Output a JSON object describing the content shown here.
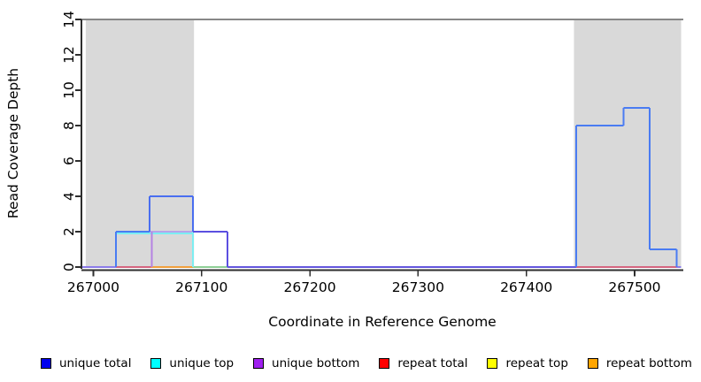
{
  "chart_data": {
    "type": "line",
    "subtype": "step-coverage",
    "title": "",
    "xlabel": "Coordinate in Reference Genome",
    "ylabel": "Read Coverage Depth",
    "xlim": [
      266989,
      267545
    ],
    "ylim": [
      0,
      14
    ],
    "x_ticks": [
      267000,
      267100,
      267200,
      267300,
      267400,
      267500
    ],
    "y_ticks": [
      0,
      2,
      4,
      6,
      8,
      10,
      12,
      14
    ],
    "grid": false,
    "legend_position": "bottom-horizontal",
    "shade_color": "#d9d9d9",
    "top_rule": {
      "y": 14,
      "color": "#878787"
    },
    "shaded_regions": [
      {
        "x0": 266993,
        "x1": 267093
      },
      {
        "x0": 267444,
        "x1": 267543
      }
    ],
    "series": [
      {
        "name": "unique total",
        "color": "#0000EE",
        "steps": [
          [
            266989,
            0
          ],
          [
            267021,
            2
          ],
          [
            267052,
            4
          ],
          [
            267092,
            2
          ],
          [
            267124,
            0
          ],
          [
            267446,
            8
          ],
          [
            267490,
            9
          ],
          [
            267514,
            1
          ],
          [
            267539,
            0
          ],
          [
            267545,
            0
          ]
        ]
      },
      {
        "name": "unique top",
        "color": "#00FFFF",
        "steps": [
          [
            266989,
            0
          ],
          [
            267021,
            2
          ],
          [
            267092,
            0
          ],
          [
            267446,
            8
          ],
          [
            267490,
            9
          ],
          [
            267514,
            1
          ],
          [
            267539,
            0
          ],
          [
            267545,
            0
          ]
        ]
      },
      {
        "name": "unique bottom",
        "color": "#A020F0",
        "steps": [
          [
            266989,
            0
          ],
          [
            267053,
            2
          ],
          [
            267124,
            0
          ],
          [
            267545,
            0
          ]
        ]
      },
      {
        "name": "repeat total",
        "color": "#FF0000",
        "steps": [
          [
            266989,
            0
          ],
          [
            267545,
            0
          ]
        ]
      },
      {
        "name": "repeat top",
        "color": "#FFFF00",
        "steps": [
          [
            266989,
            0
          ],
          [
            267545,
            0
          ]
        ]
      },
      {
        "name": "repeat bottom",
        "color": "#FFA500",
        "steps": [
          [
            266989,
            0
          ],
          [
            267545,
            0
          ]
        ]
      }
    ],
    "legend": [
      {
        "label": "unique total",
        "color": "#0000EE"
      },
      {
        "label": "unique top",
        "color": "#00FFFF"
      },
      {
        "label": "unique bottom",
        "color": "#A020F0"
      },
      {
        "label": "repeat total",
        "color": "#FF0000"
      },
      {
        "label": "repeat top",
        "color": "#FFFF00"
      },
      {
        "label": "repeat bottom",
        "color": "#FFA500"
      }
    ],
    "rendered_segments": [
      {
        "x1": 266989,
        "x2": 267021,
        "y1": 0,
        "y2": 0,
        "color": "#8b7be8",
        "w": 2
      },
      {
        "x1": 267021,
        "x2": 267053,
        "y1": 0,
        "y2": 0,
        "color": "#d4647f",
        "w": 2
      },
      {
        "x1": 267053,
        "x2": 267092,
        "y1": 0,
        "y2": 0,
        "color": "#f09f3c",
        "w": 2
      },
      {
        "x1": 267092,
        "x2": 267124,
        "y1": 0,
        "y2": 0,
        "color": "#8ecf96",
        "w": 2
      },
      {
        "x1": 267124,
        "x2": 267446,
        "y1": 0,
        "y2": 0,
        "color": "#6456dd",
        "w": 2
      },
      {
        "x1": 267446,
        "x2": 267539,
        "y1": 0,
        "y2": 0,
        "color": "#d4647f",
        "w": 2
      },
      {
        "x1": 267539,
        "x2": 267543,
        "y1": 0,
        "y2": 0,
        "color": "#8b7be8",
        "w": 2
      },
      {
        "x1": 267021,
        "x2": 267092,
        "y1": 1.9,
        "y2": 1.9,
        "color": "#7ceef2",
        "w": 2
      },
      {
        "x1": 267021,
        "x2": 267021,
        "y1": 0,
        "y2": 2,
        "color": "#4a7cf2",
        "w": 2
      },
      {
        "x1": 267021,
        "x2": 267052,
        "y1": 2,
        "y2": 2,
        "color": "#4a7cf2",
        "w": 2
      },
      {
        "x1": 267052,
        "x2": 267092,
        "y1": 2,
        "y2": 2,
        "color": "#b7a4ea",
        "w": 2
      },
      {
        "x1": 267052,
        "x2": 267052,
        "y1": 2,
        "y2": 4,
        "color": "#4a6ef0",
        "w": 2
      },
      {
        "x1": 267054,
        "x2": 267054,
        "y1": 0,
        "y2": 2,
        "color": "#b583e3",
        "w": 2
      },
      {
        "x1": 267052,
        "x2": 267092,
        "y1": 4,
        "y2": 4,
        "color": "#4a6ef0",
        "w": 2
      },
      {
        "x1": 267092,
        "x2": 267092,
        "y1": 2,
        "y2": 4,
        "color": "#4a6ef0",
        "w": 2
      },
      {
        "x1": 267092,
        "x2": 267092,
        "y1": 0,
        "y2": 2,
        "color": "#7ceef2",
        "w": 2
      },
      {
        "x1": 267092,
        "x2": 267124,
        "y1": 2,
        "y2": 2,
        "color": "#5b4fe0",
        "w": 2
      },
      {
        "x1": 267124,
        "x2": 267124,
        "y1": 0,
        "y2": 2,
        "color": "#5b4fe0",
        "w": 2
      },
      {
        "x1": 267446,
        "x2": 267446,
        "y1": 0,
        "y2": 8,
        "color": "#4a7cf2",
        "w": 2
      },
      {
        "x1": 267446,
        "x2": 267490,
        "y1": 8,
        "y2": 8,
        "color": "#4a7cf2",
        "w": 2
      },
      {
        "x1": 267490,
        "x2": 267490,
        "y1": 8,
        "y2": 9,
        "color": "#4a7cf2",
        "w": 2
      },
      {
        "x1": 267490,
        "x2": 267514,
        "y1": 9,
        "y2": 9,
        "color": "#4a7cf2",
        "w": 2
      },
      {
        "x1": 267514,
        "x2": 267514,
        "y1": 1,
        "y2": 9,
        "color": "#4a7cf2",
        "w": 2
      },
      {
        "x1": 267514,
        "x2": 267539,
        "y1": 1,
        "y2": 1,
        "color": "#4a7cf2",
        "w": 2
      },
      {
        "x1": 267539,
        "x2": 267539,
        "y1": 0,
        "y2": 1,
        "color": "#4a7cf2",
        "w": 2
      }
    ],
    "axis_color": "#2e2e2e"
  }
}
